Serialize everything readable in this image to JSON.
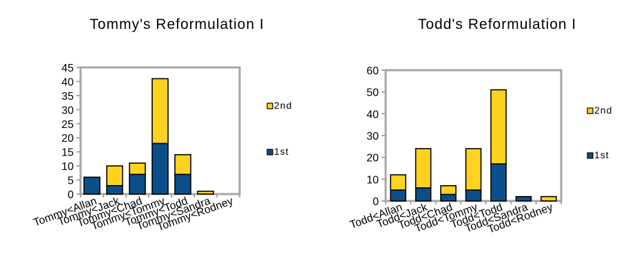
{
  "chart_data": [
    {
      "type": "bar",
      "stacked": true,
      "title": "Tommy's Reformulation I",
      "categories": [
        "Tommy<Allan",
        "Tommy<Jack",
        "Tommy<Chad",
        "Tommy<Tommy",
        "Tommy<Todd",
        "Tommy<Sandra",
        "Tommy<Rodney"
      ],
      "series": [
        {
          "name": "1st",
          "values": [
            6,
            3,
            7,
            18,
            7,
            0,
            0
          ],
          "color": "#0b4f8a"
        },
        {
          "name": "2nd",
          "values": [
            0,
            7,
            4,
            23,
            7,
            1,
            0
          ],
          "color": "#ffd21f"
        }
      ],
      "ylim": [
        0,
        45
      ],
      "yticks": [
        0,
        5,
        10,
        15,
        20,
        25,
        30,
        35,
        40,
        45
      ],
      "grid": false,
      "legend_position": "right",
      "xlabel": "",
      "ylabel": ""
    },
    {
      "type": "bar",
      "stacked": true,
      "title": "Todd's Reformulation I",
      "categories": [
        "Todd<Allan",
        "Todd<Jack",
        "Todd<Chad",
        "Todd<Tommy",
        "Todd<Todd",
        "Todd<Sandra",
        "Todd<Rodney"
      ],
      "series": [
        {
          "name": "1st",
          "values": [
            5,
            6,
            3,
            5,
            17,
            2,
            0
          ],
          "color": "#0b4f8a"
        },
        {
          "name": "2nd",
          "values": [
            7,
            18,
            4,
            19,
            34,
            0,
            2
          ],
          "color": "#ffd21f"
        }
      ],
      "ylim": [
        0,
        60
      ],
      "yticks": [
        0,
        10,
        20,
        30,
        40,
        50,
        60
      ],
      "grid": false,
      "legend_position": "right",
      "xlabel": "",
      "ylabel": ""
    }
  ]
}
